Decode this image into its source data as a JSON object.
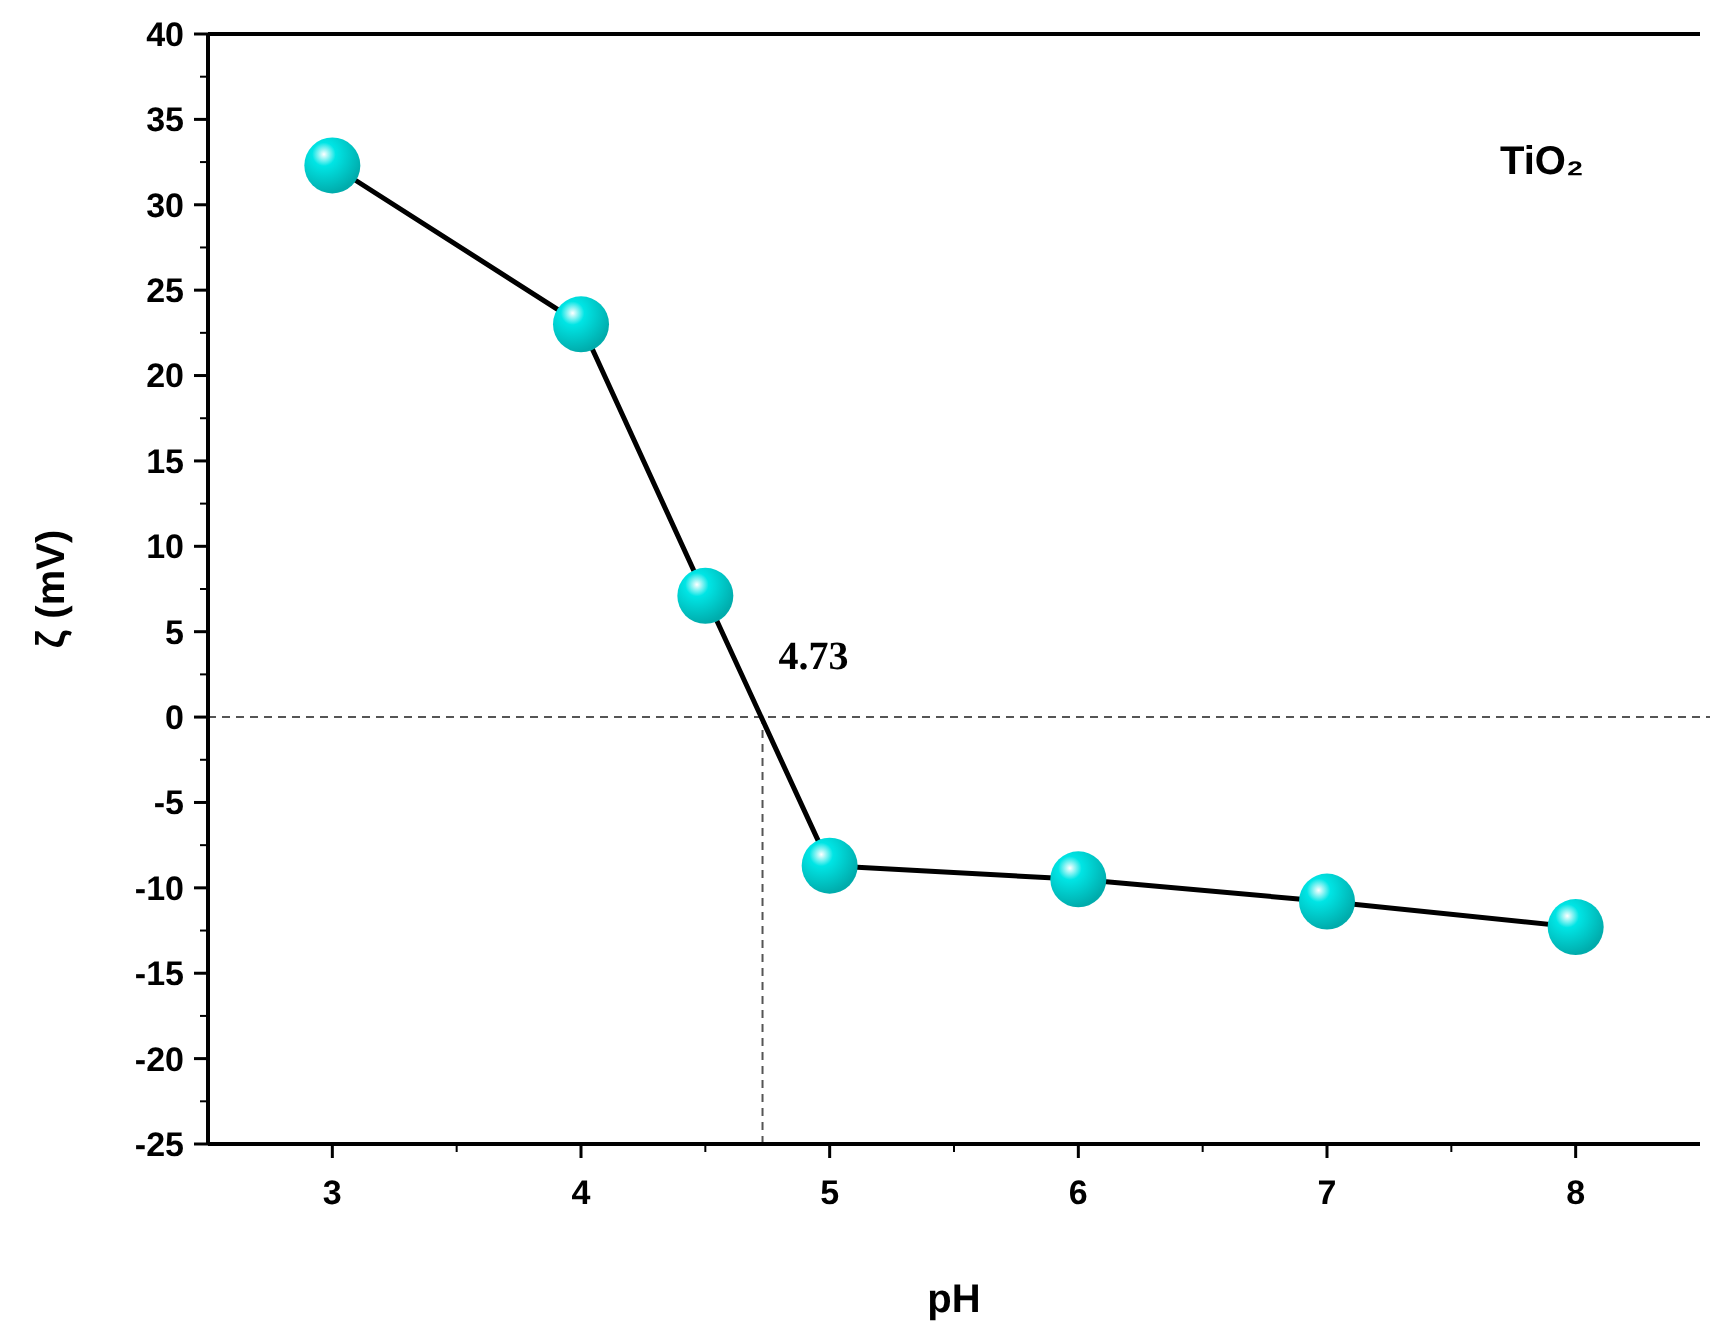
{
  "chart_data": {
    "type": "line",
    "xlabel": "pH",
    "ylabel": "ζ (mV)",
    "x": [
      3,
      4,
      4.5,
      5,
      6,
      7,
      8
    ],
    "series": [
      {
        "color": "#00e5e5",
        "values": [
          32.3,
          23.0,
          7.1,
          -8.7,
          -9.5,
          -10.8,
          -12.3
        ]
      }
    ],
    "marker": "circle",
    "line_style": "solid",
    "xlim": [
      2.5,
      8.5
    ],
    "xticks": [
      3,
      4,
      5,
      6,
      7,
      8
    ],
    "ylim": [
      -25,
      40
    ],
    "yticks": [
      -25,
      -20,
      -15,
      -10,
      -5,
      0,
      5,
      10,
      15,
      20,
      25,
      30,
      35,
      40
    ],
    "ref_lines": [
      {
        "axis": "y",
        "value": 0,
        "line_style": "dashed",
        "color": "#555555"
      },
      {
        "axis": "x",
        "value": 4.73,
        "label": "4.73",
        "line_style": "dashed",
        "color": "#555555"
      }
    ],
    "annotations": [
      "TiO₂"
    ]
  }
}
